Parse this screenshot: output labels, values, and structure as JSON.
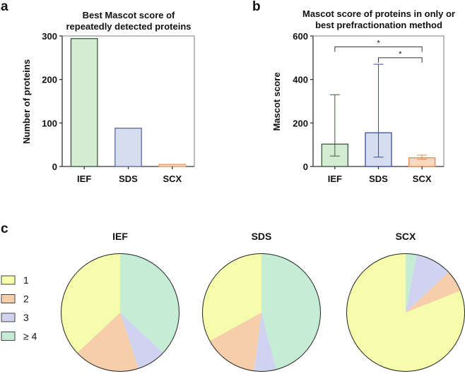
{
  "chart_data": [
    {
      "panel": "a",
      "type": "bar",
      "title": [
        "Best Mascot score of",
        "repeatedly detected proteins"
      ],
      "xlabel": "",
      "ylabel": "Number of proteins",
      "categories": [
        "IEF",
        "SDS",
        "SCX"
      ],
      "values": [
        294,
        88,
        5
      ],
      "ylim": [
        0,
        300
      ],
      "yticks": [
        "0",
        "100",
        "200",
        "300"
      ],
      "colors": {
        "fill": [
          "#d5ecd4",
          "#d6ddee",
          "#f8d8bf"
        ],
        "stroke": [
          "#3e5a3e",
          "#5a6ba0",
          "#e8a070"
        ]
      }
    },
    {
      "panel": "b",
      "type": "bar",
      "title": [
        "Mascot score of proteins in only or",
        "best prefractionation method"
      ],
      "xlabel": "",
      "ylabel": "Mascot score",
      "categories": [
        "IEF",
        "SDS",
        "SCX"
      ],
      "values": [
        103,
        155,
        40
      ],
      "error_low": [
        48,
        43,
        33
      ],
      "error_high": [
        330,
        470,
        52
      ],
      "ylim": [
        0,
        600
      ],
      "yticks": [
        "0",
        "200",
        "400",
        "600"
      ],
      "significance": [
        {
          "from": "IEF",
          "to": "SCX",
          "label": "*"
        },
        {
          "from": "SDS",
          "to": "SCX",
          "label": "*"
        }
      ],
      "colors": {
        "fill": [
          "#d5ecd4",
          "#d6ddee",
          "#f8d8bf"
        ],
        "stroke": [
          "#3e5a3e",
          "#3a4fa0",
          "#e8864a"
        ]
      }
    },
    {
      "panel": "c",
      "type": "pie",
      "legend": [
        "1",
        "2",
        "3",
        "≥ 4"
      ],
      "legend_position": "left",
      "colors": [
        "#f5fcab",
        "#f6cfaa",
        "#d0d3f0",
        "#c5ecd4"
      ],
      "pies": [
        {
          "title": "IEF",
          "values": [
            37,
            18,
            8,
            37
          ]
        },
        {
          "title": "SDS",
          "values": [
            33,
            15,
            6,
            46
          ]
        },
        {
          "title": "SCX",
          "values": [
            81,
            6,
            10,
            3
          ]
        }
      ]
    }
  ],
  "panel_labels": [
    "a",
    "b",
    "c"
  ]
}
